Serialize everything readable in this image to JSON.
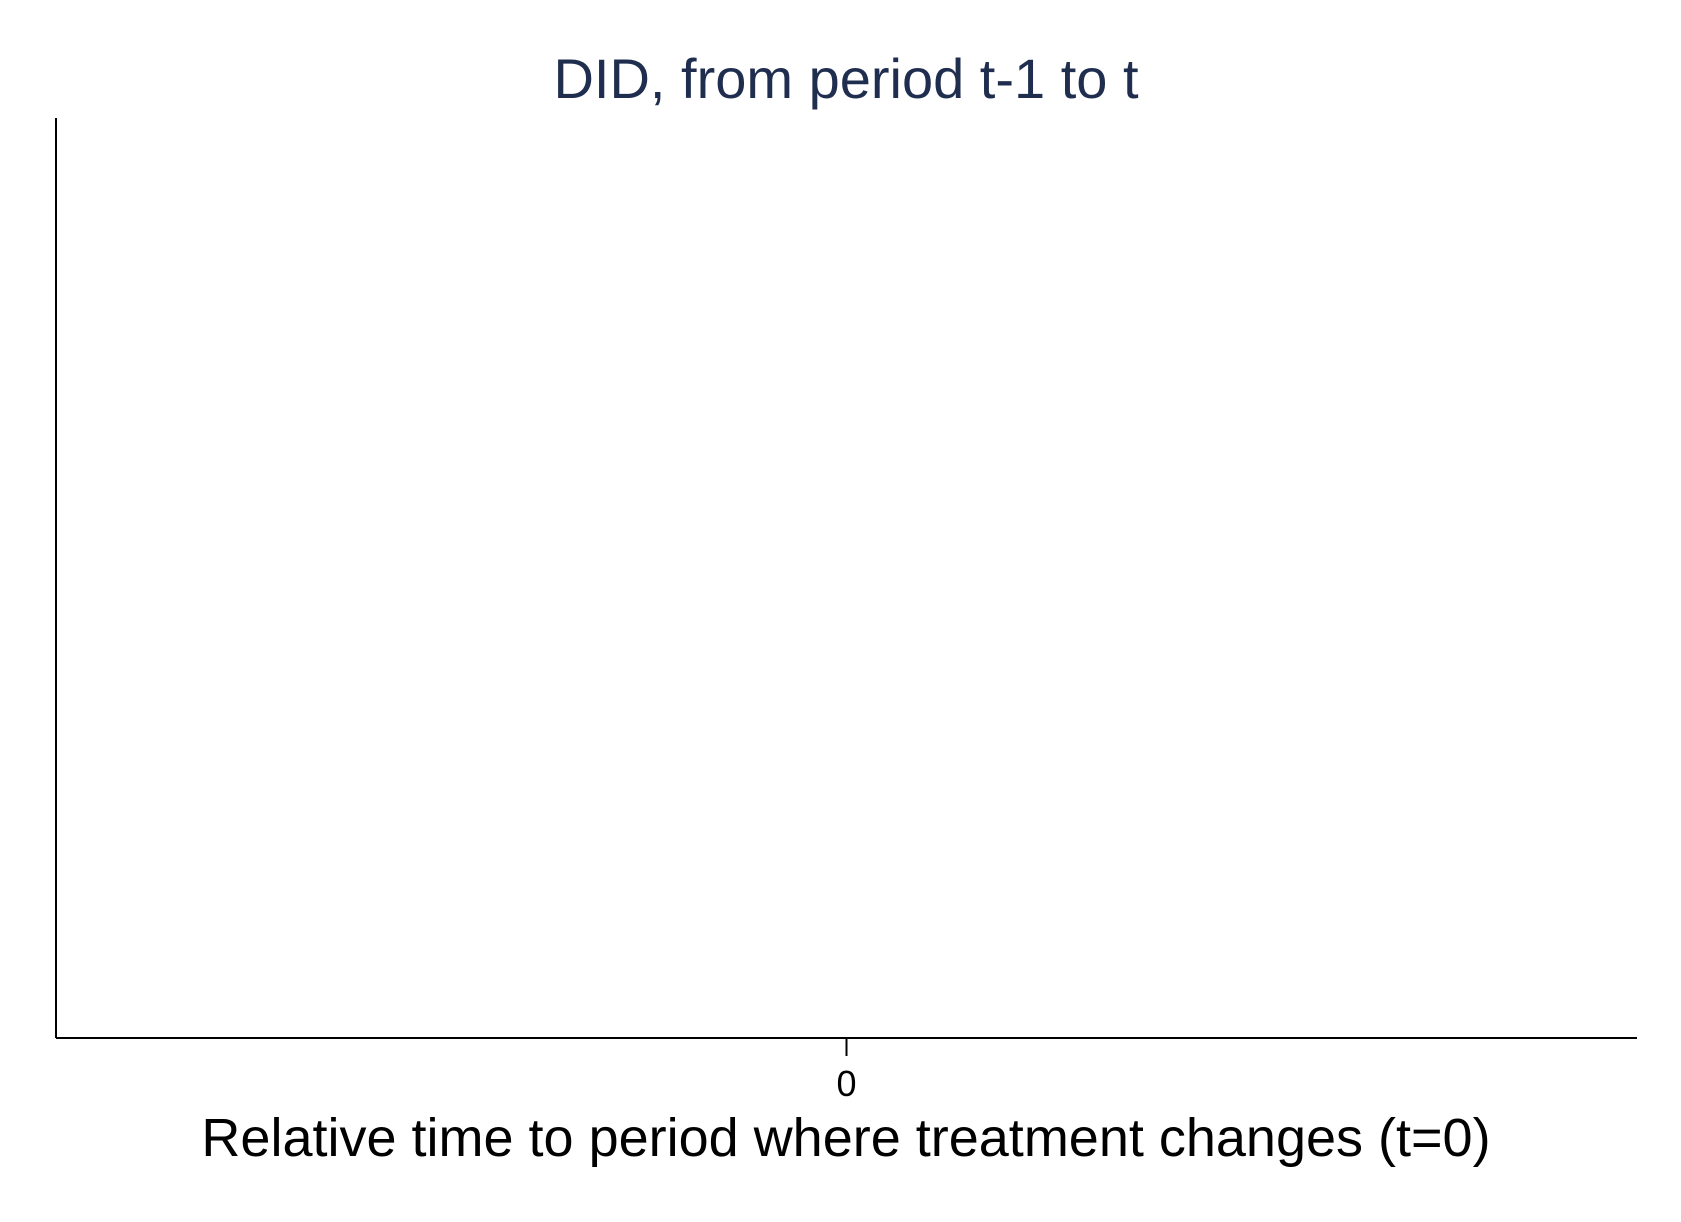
{
  "chart_data": {
    "type": "scatter",
    "title": "DID, from period t-1 to t",
    "xlabel": "Relative time to period where treatment changes (t=0)",
    "ylabel": "",
    "xticks": [
      0
    ],
    "xtick_labels": [
      "0"
    ],
    "xlim": [
      -1,
      1
    ],
    "series": [],
    "grid": false,
    "legend": "none"
  },
  "colors": {
    "title": "#1f2d4e",
    "axis": "#000000",
    "text": "#000000",
    "background": "#ffffff"
  }
}
